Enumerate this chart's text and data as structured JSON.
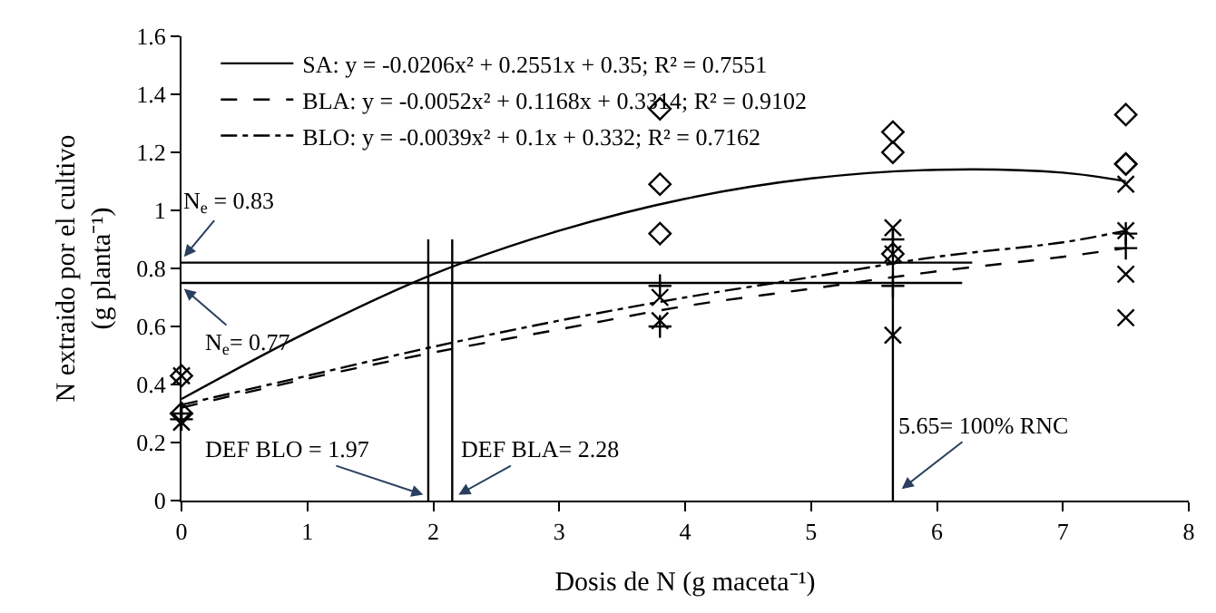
{
  "chart_data": {
    "type": "scatter",
    "xlabel": "Dosis de N (g maceta⁻¹)",
    "ylabel": "N extraido por el cultivo\n(g planta⁻¹)",
    "xlim": [
      0,
      8
    ],
    "xticks": [
      0,
      1,
      2,
      3,
      4,
      5,
      6,
      7,
      8
    ],
    "ylim": [
      0,
      1.6
    ],
    "yticks": [
      0,
      0.2,
      0.4,
      0.6,
      0.8,
      1,
      1.2,
      1.4,
      1.6
    ],
    "legend": "top left",
    "series": [
      {
        "marker": "diamond",
        "color": "#000000",
        "x": [
          0,
          0,
          3.8,
          3.8,
          3.8,
          5.65,
          5.65,
          5.65,
          7.5,
          7.5,
          7.5
        ],
        "values": [
          0.43,
          0.3,
          1.35,
          1.09,
          0.92,
          1.27,
          1.2,
          0.85,
          1.33,
          1.16,
          1.16
        ]
      },
      {
        "marker": "cross",
        "color": "#000000",
        "x": [
          0,
          0,
          3.8,
          3.8,
          5.65,
          5.65,
          7.5,
          7.5
        ],
        "values": [
          0.3,
          0.28,
          0.74,
          0.6,
          0.9,
          0.74,
          0.92,
          0.87
        ]
      },
      {
        "marker": "x",
        "color": "#000000",
        "x": [
          0,
          0,
          3.8,
          3.8,
          5.65,
          5.65,
          5.65,
          7.5,
          7.5,
          7.5,
          7.5
        ],
        "values": [
          0.43,
          0.27,
          0.7,
          0.62,
          0.94,
          0.85,
          0.57,
          1.09,
          0.93,
          0.78,
          0.63
        ]
      },
      {
        "type": "line",
        "name": "SA: y = -0.0206x² + 0.2551x + 0.35; R² = 0.7551",
        "line_style": "solid",
        "color": "#000000",
        "x": [
          0,
          1,
          2,
          3,
          4,
          5,
          6,
          7,
          7.5
        ],
        "values": [
          0.35,
          0.58,
          0.78,
          0.93,
          1.04,
          1.11,
          1.14,
          1.13,
          1.1
        ]
      },
      {
        "type": "line",
        "name": "BLA: y = -0.0052x² + 0.1168x + 0.3314; R² = 0.9102",
        "line_style": "dashed",
        "color": "#000000",
        "x": [
          0,
          1,
          2,
          3,
          4,
          5,
          6,
          7,
          7.5
        ],
        "values": [
          0.32,
          0.42,
          0.51,
          0.59,
          0.67,
          0.73,
          0.79,
          0.84,
          0.87
        ]
      },
      {
        "type": "line",
        "name": "BLO: y = -0.0039x² + 0.1x + 0.332; R² = 0.7162",
        "line_style": "dashdot",
        "color": "#000000",
        "x": [
          0,
          1,
          2,
          3,
          4,
          5,
          6,
          7,
          7.5
        ],
        "values": [
          0.33,
          0.43,
          0.53,
          0.62,
          0.7,
          0.77,
          0.84,
          0.89,
          0.93
        ]
      },
      {
        "type": "line",
        "line_style": "solid",
        "color": "#000000",
        "x": [
          0,
          6.28
        ],
        "values": [
          0.82,
          0.82
        ]
      },
      {
        "type": "line",
        "line_style": "solid",
        "color": "#000000",
        "x": [
          0,
          6.2
        ],
        "values": [
          0.75,
          0.75
        ]
      },
      {
        "type": "line",
        "line_style": "solid",
        "color": "#000000",
        "x": [
          1.96,
          1.96
        ],
        "values": [
          0,
          0.9
        ]
      },
      {
        "type": "line",
        "line_style": "solid",
        "color": "#000000",
        "x": [
          2.15,
          2.15
        ],
        "values": [
          0,
          0.9
        ]
      },
      {
        "type": "line",
        "line_style": "solid",
        "color": "#000000",
        "x": [
          5.65,
          5.65
        ],
        "values": [
          0,
          0.94
        ]
      }
    ],
    "annotations": [
      {
        "text": "N$_{e}$ = 0.83",
        "x": 0.02,
        "y": 0.84
      },
      {
        "text": "N$_{e}$= 0.77",
        "x": 0.02,
        "y": 0.73
      },
      {
        "text": "DEF BLO = 1.97",
        "x": 1.92,
        "y": 0.02
      },
      {
        "text": "DEF BLA= 2.28",
        "x": 2.2,
        "y": 0.02
      },
      {
        "text": "5.65= 100% RNC",
        "x": 5.72,
        "y": 0.04
      }
    ]
  }
}
